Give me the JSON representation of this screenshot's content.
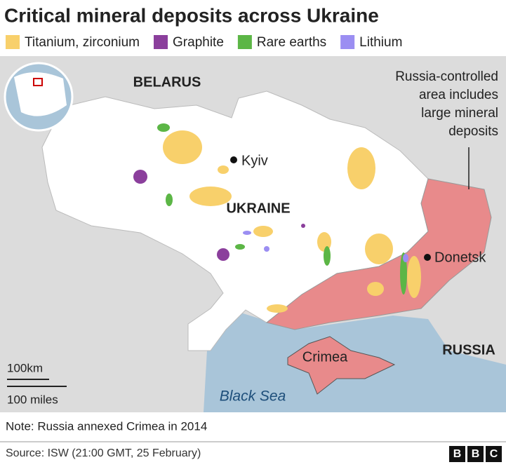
{
  "title": "Critical mineral deposits across Ukraine",
  "legend": [
    {
      "label": "Titanium, zirconium",
      "color": "#f8d06b"
    },
    {
      "label": "Graphite",
      "color": "#8b3f9c"
    },
    {
      "label": "Rare earths",
      "color": "#5cb646"
    },
    {
      "label": "Lithium",
      "color": "#9b8ef2"
    }
  ],
  "map": {
    "countries": {
      "belarus": "BELARUS",
      "ukraine": "UKRAINE",
      "russia": "RUSSIA"
    },
    "cities": {
      "kyiv": "Kyiv",
      "donetsk": "Donetsk"
    },
    "regions": {
      "crimea": "Crimea"
    },
    "sea": "Black Sea",
    "annotation": [
      "Russia-controlled",
      "area includes",
      "large mineral",
      "deposits"
    ],
    "scale": {
      "km": "100km",
      "miles": "100 miles"
    }
  },
  "note": "Note: Russia annexed Crimea in 2014",
  "source": "Source: ISW (21:00 GMT, 25 February)",
  "logo": [
    "B",
    "B",
    "C"
  ]
}
